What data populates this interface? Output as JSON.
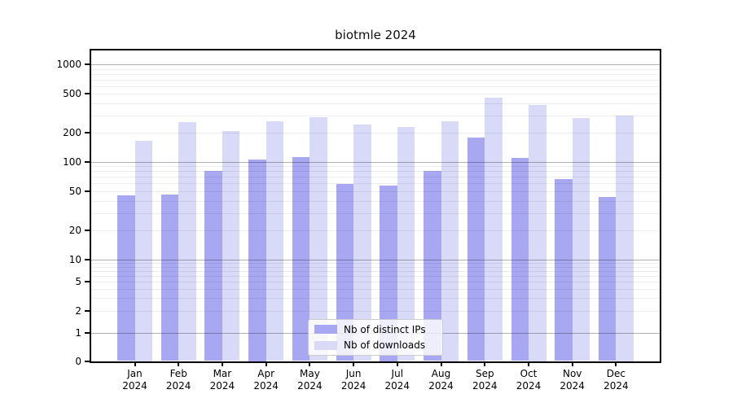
{
  "title": "biotmle 2024",
  "legend": {
    "items": [
      {
        "label": "Nb of distinct IPs",
        "color": "#a8a8f2"
      },
      {
        "label": "Nb of downloads",
        "color": "#d9d9f8"
      }
    ]
  },
  "y_axis": {
    "tick_labels": [
      "1000",
      "500",
      "200",
      "100",
      "50",
      "20",
      "10",
      "5",
      "2",
      "1",
      "0"
    ]
  },
  "x_axis": {
    "year": "2024",
    "months": [
      "Jan",
      "Feb",
      "Mar",
      "Apr",
      "May",
      "Jun",
      "Jul",
      "Aug",
      "Sep",
      "Oct",
      "Nov",
      "Dec"
    ]
  },
  "chart_data": {
    "type": "bar",
    "title": "biotmle 2024",
    "categories": [
      "Jan 2024",
      "Feb 2024",
      "Mar 2024",
      "Apr 2024",
      "May 2024",
      "Jun 2024",
      "Jul 2024",
      "Aug 2024",
      "Sep 2024",
      "Oct 2024",
      "Nov 2024",
      "Dec 2024"
    ],
    "series": [
      {
        "name": "Nb of distinct IPs",
        "color": "#a8a8f2",
        "values": [
          45,
          46,
          81,
          105,
          111,
          59,
          57,
          81,
          176,
          110,
          66,
          44
        ]
      },
      {
        "name": "Nb of downloads",
        "color": "#d9d9f8",
        "values": [
          165,
          255,
          205,
          260,
          288,
          240,
          225,
          262,
          450,
          385,
          280,
          297
        ]
      }
    ],
    "xlabel": "",
    "ylabel": "",
    "yscale": "log-like with linear 0-1 segment",
    "y_ticks": [
      0,
      1,
      2,
      5,
      10,
      20,
      50,
      100,
      200,
      500,
      1000
    ],
    "ylim": [
      0,
      1400
    ],
    "grid": "horizontal major (powers of 10, darker) and minor (2-9 per decade, faint), drawn over bars",
    "legend_position": "inside lower-center"
  }
}
